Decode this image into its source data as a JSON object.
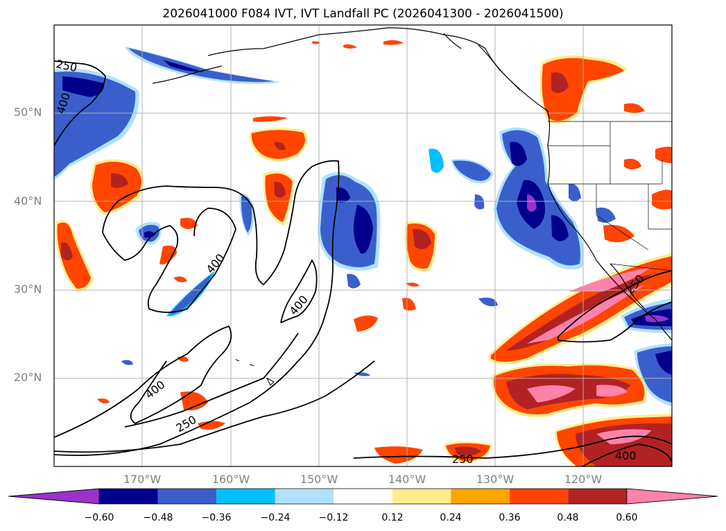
{
  "title": "2026041000 F084 IVT, IVT Landfall PC (2026041300 - 2026041500)",
  "map": {
    "lat_labels": [
      "50°N",
      "40°N",
      "30°N",
      "20°N"
    ],
    "lon_labels": [
      "170°W",
      "160°W",
      "150°W",
      "140°W",
      "130°W",
      "120°W"
    ],
    "contour_labels": [
      "250",
      "400",
      "400",
      "400",
      "400",
      "250",
      "250",
      "250",
      "400"
    ],
    "colors": {
      "neg_060": "#9932cc",
      "neg_048": "#00008b",
      "neg_036": "#3a5fcd",
      "neg_024": "#00bfff",
      "neg_012": "#b0e2ff",
      "pos_012": "#ffec8b",
      "pos_024": "#ffa500",
      "pos_036": "#ff4500",
      "pos_048": "#b22222",
      "pos_060": "#ff82ab"
    }
  },
  "colorbar": {
    "ticks": [
      "−0.60",
      "−0.48",
      "−0.36",
      "−0.24",
      "−0.12",
      "0.12",
      "0.24",
      "0.36",
      "0.48",
      "0.60"
    ],
    "colors": [
      "#9932cc",
      "#00008b",
      "#3a5fcd",
      "#00bfff",
      "#b0e2ff",
      "#ffffff",
      "#ffec8b",
      "#ffa500",
      "#ff4500",
      "#b22222",
      "#ff82ab"
    ]
  }
}
